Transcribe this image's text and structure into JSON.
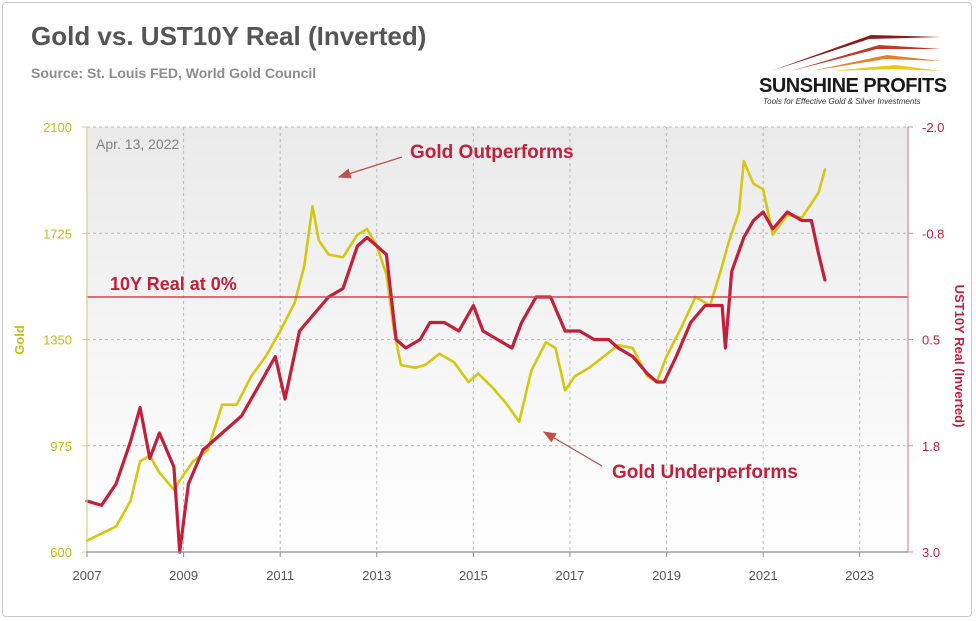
{
  "header": {
    "title": "Gold vs. UST10Y Real (Inverted)",
    "subtitle": "Source: St. Louis FED, World Gold Council"
  },
  "logo": {
    "name": "SUNSHINE PROFITS",
    "tagline": "Tools for Effective Gold & Silver Investments"
  },
  "colors": {
    "gold": "#d4c710",
    "real": "#c21f3a",
    "annotation": "#c21f3a",
    "refline": "#d4424f",
    "grid": "#b8b8b8"
  },
  "chart_data": {
    "type": "line",
    "date_label": "Apr. 13, 2022",
    "xlim": [
      2007,
      2024
    ],
    "x_ticks": [
      "2007",
      "2009",
      "2011",
      "2013",
      "2015",
      "2017",
      "2019",
      "2021",
      "2023"
    ],
    "y_left": {
      "label": "Gold",
      "lim": [
        600,
        2100
      ],
      "ticks": [
        "600",
        "975",
        "1350",
        "1725",
        "2100"
      ]
    },
    "y_right": {
      "label": "UST10Y Real (Inverted)",
      "lim": [
        3.0,
        -2.0
      ],
      "inverted": true,
      "ticks": [
        "3.0",
        "1.8",
        "0.5",
        "-0.8",
        "-2.0"
      ]
    },
    "grid": true,
    "annotations": [
      {
        "text": "Gold Outperforms",
        "arrow_to": {
          "x": 2011.2,
          "y_gold": 1930
        }
      },
      {
        "text": "Gold Underperforms",
        "arrow_to": {
          "x": 2015.4,
          "y_gold": 1020
        }
      },
      {
        "text": "10Y Real at 0%",
        "reference_line_y_right": 0.0
      }
    ],
    "series": [
      {
        "name": "Gold",
        "axis": "left",
        "x": [
          2007.0,
          2007.3,
          2007.6,
          2007.9,
          2008.1,
          2008.3,
          2008.5,
          2008.8,
          2008.95,
          2009.2,
          2009.5,
          2009.8,
          2010.1,
          2010.4,
          2010.7,
          2011.0,
          2011.3,
          2011.5,
          2011.67,
          2011.8,
          2012.0,
          2012.3,
          2012.6,
          2012.8,
          2013.0,
          2013.2,
          2013.35,
          2013.5,
          2013.8,
          2014.0,
          2014.3,
          2014.6,
          2014.9,
          2015.1,
          2015.4,
          2015.7,
          2015.95,
          2016.2,
          2016.5,
          2016.7,
          2016.9,
          2017.1,
          2017.4,
          2017.7,
          2018.0,
          2018.3,
          2018.6,
          2018.8,
          2019.0,
          2019.3,
          2019.6,
          2019.9,
          2020.1,
          2020.3,
          2020.5,
          2020.6,
          2020.8,
          2021.0,
          2021.2,
          2021.5,
          2021.8,
          2022.0,
          2022.15,
          2022.28
        ],
        "y": [
          640,
          665,
          690,
          780,
          920,
          940,
          880,
          820,
          860,
          920,
          960,
          1120,
          1120,
          1220,
          1290,
          1380,
          1480,
          1610,
          1820,
          1700,
          1650,
          1640,
          1720,
          1740,
          1680,
          1580,
          1390,
          1260,
          1250,
          1260,
          1300,
          1270,
          1200,
          1230,
          1180,
          1120,
          1060,
          1240,
          1340,
          1320,
          1170,
          1220,
          1250,
          1290,
          1330,
          1320,
          1220,
          1200,
          1290,
          1390,
          1500,
          1470,
          1580,
          1700,
          1800,
          1980,
          1900,
          1880,
          1720,
          1790,
          1780,
          1830,
          1870,
          1950
        ]
      },
      {
        "name": "UST10Y Real (Inverted)",
        "axis": "right",
        "x": [
          2007.0,
          2007.3,
          2007.6,
          2007.9,
          2008.1,
          2008.3,
          2008.5,
          2008.8,
          2008.92,
          2009.1,
          2009.4,
          2009.8,
          2010.2,
          2010.6,
          2010.9,
          2011.1,
          2011.4,
          2011.7,
          2012.0,
          2012.3,
          2012.6,
          2012.8,
          2013.0,
          2013.2,
          2013.4,
          2013.6,
          2013.9,
          2014.1,
          2014.4,
          2014.7,
          2015.0,
          2015.2,
          2015.5,
          2015.8,
          2016.0,
          2016.3,
          2016.6,
          2016.9,
          2017.2,
          2017.5,
          2017.8,
          2018.0,
          2018.3,
          2018.6,
          2018.8,
          2018.95,
          2019.2,
          2019.5,
          2019.8,
          2020.0,
          2020.15,
          2020.22,
          2020.35,
          2020.6,
          2020.8,
          2021.0,
          2021.2,
          2021.5,
          2021.8,
          2022.0,
          2022.15,
          2022.28
        ],
        "y": [
          2.4,
          2.45,
          2.2,
          1.7,
          1.3,
          1.9,
          1.6,
          2.0,
          3.0,
          2.2,
          1.8,
          1.6,
          1.4,
          1.0,
          0.7,
          1.2,
          0.4,
          0.2,
          0.0,
          -0.1,
          -0.6,
          -0.7,
          -0.6,
          -0.5,
          0.5,
          0.6,
          0.5,
          0.3,
          0.3,
          0.4,
          0.1,
          0.4,
          0.5,
          0.6,
          0.3,
          0.0,
          0.0,
          0.4,
          0.4,
          0.5,
          0.5,
          0.6,
          0.7,
          0.9,
          1.0,
          1.0,
          0.7,
          0.3,
          0.1,
          0.1,
          0.1,
          0.6,
          -0.3,
          -0.7,
          -0.9,
          -1.0,
          -0.8,
          -1.0,
          -0.9,
          -0.9,
          -0.5,
          -0.2
        ]
      }
    ]
  }
}
